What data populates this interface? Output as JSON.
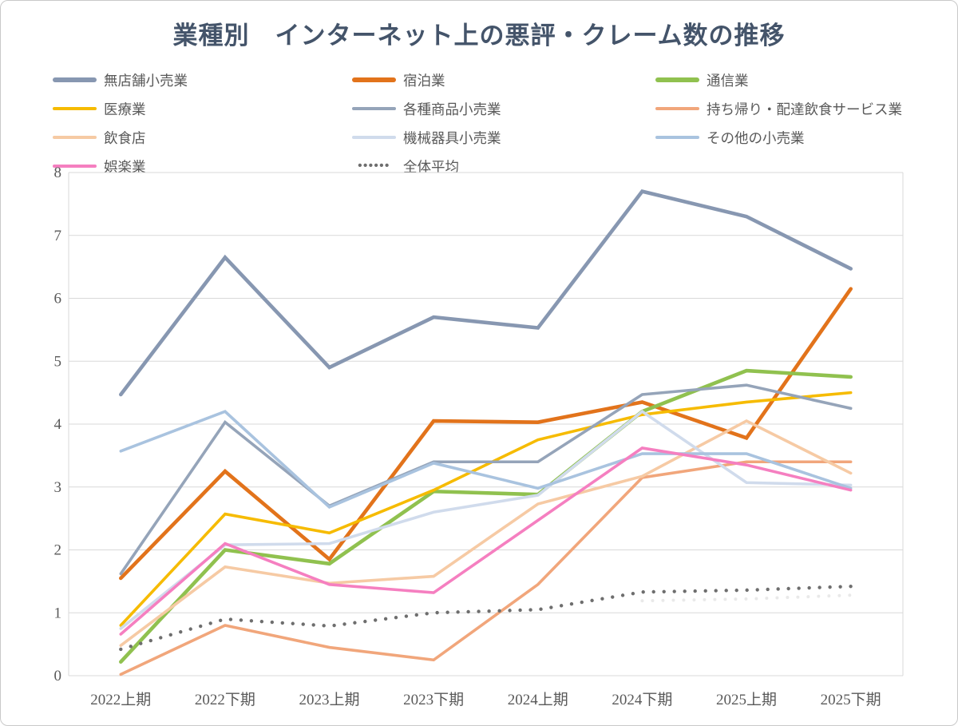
{
  "title": "業種別　インターネット上の悪評・クレーム数の推移",
  "chart_data": {
    "type": "line",
    "title": "業種別　インターネット上の悪評・クレーム数の推移",
    "categories": [
      "2022上期",
      "2022下期",
      "2023上期",
      "2023下期",
      "2024上期",
      "2024下期",
      "2025上期",
      "2025下期"
    ],
    "yticks": [
      "0",
      "1",
      "2",
      "3",
      "4",
      "5",
      "6",
      "7",
      "8"
    ],
    "ylim": [
      0,
      8
    ],
    "grid": true,
    "legend_position": "top",
    "grid_color": "#d9d9d9",
    "tick_color": "#595959",
    "series": [
      {
        "name": "無店舗小売業",
        "color": "#8797b1",
        "width": 4.6,
        "style": "solid",
        "values": [
          4.47,
          6.65,
          4.9,
          5.7,
          5.53,
          7.7,
          7.3,
          6.47
        ]
      },
      {
        "name": "宿泊業",
        "color": "#e2731b",
        "width": 4.6,
        "style": "solid",
        "values": [
          1.55,
          3.25,
          1.85,
          4.05,
          4.03,
          4.35,
          3.78,
          6.15
        ]
      },
      {
        "name": "通信業",
        "color": "#90c14f",
        "width": 4.6,
        "style": "solid",
        "values": [
          0.22,
          2.0,
          1.78,
          2.93,
          2.88,
          4.2,
          4.85,
          4.75
        ]
      },
      {
        "name": "医療業",
        "color": "#f6bb00",
        "width": 3.6,
        "style": "solid",
        "values": [
          0.8,
          2.57,
          2.27,
          2.95,
          3.75,
          4.15,
          4.35,
          4.5
        ]
      },
      {
        "name": "各種商品小売業",
        "color": "#95a4b9",
        "width": 3.6,
        "style": "solid",
        "values": [
          1.62,
          4.03,
          2.7,
          3.4,
          3.4,
          4.47,
          4.62,
          4.25
        ]
      },
      {
        "name": "持ち帰り・配達飲食サービス業",
        "color": "#f1a67b",
        "width": 3.6,
        "style": "solid",
        "values": [
          0.02,
          0.8,
          0.45,
          0.25,
          1.45,
          3.15,
          3.4,
          3.4
        ]
      },
      {
        "name": "飲食店",
        "color": "#f6caa4",
        "width": 3.6,
        "style": "solid",
        "values": [
          0.48,
          1.73,
          1.47,
          1.58,
          2.73,
          3.17,
          4.05,
          3.22
        ]
      },
      {
        "name": "機械器具小売業",
        "color": "#d0dbec",
        "width": 3.6,
        "style": "solid",
        "values": [
          0.75,
          2.08,
          2.1,
          2.6,
          2.87,
          4.2,
          3.07,
          3.03
        ]
      },
      {
        "name": "その他の小売業",
        "color": "#a9c3df",
        "width": 3.6,
        "style": "solid",
        "values": [
          3.57,
          4.2,
          2.68,
          3.38,
          2.98,
          3.53,
          3.53,
          2.98
        ]
      },
      {
        "name": "娯楽業",
        "color": "#f57fc0",
        "width": 3.6,
        "style": "solid",
        "values": [
          0.66,
          2.1,
          1.45,
          1.32,
          2.47,
          3.62,
          3.35,
          2.95
        ]
      },
      {
        "name": "全体平均",
        "color": "#6e6e6e",
        "width": 4.4,
        "style": "dotted",
        "values": [
          0.42,
          0.9,
          0.79,
          1.0,
          1.05,
          1.33,
          1.36,
          1.42
        ]
      }
    ]
  },
  "legend_dot_glyphs": "••••••"
}
